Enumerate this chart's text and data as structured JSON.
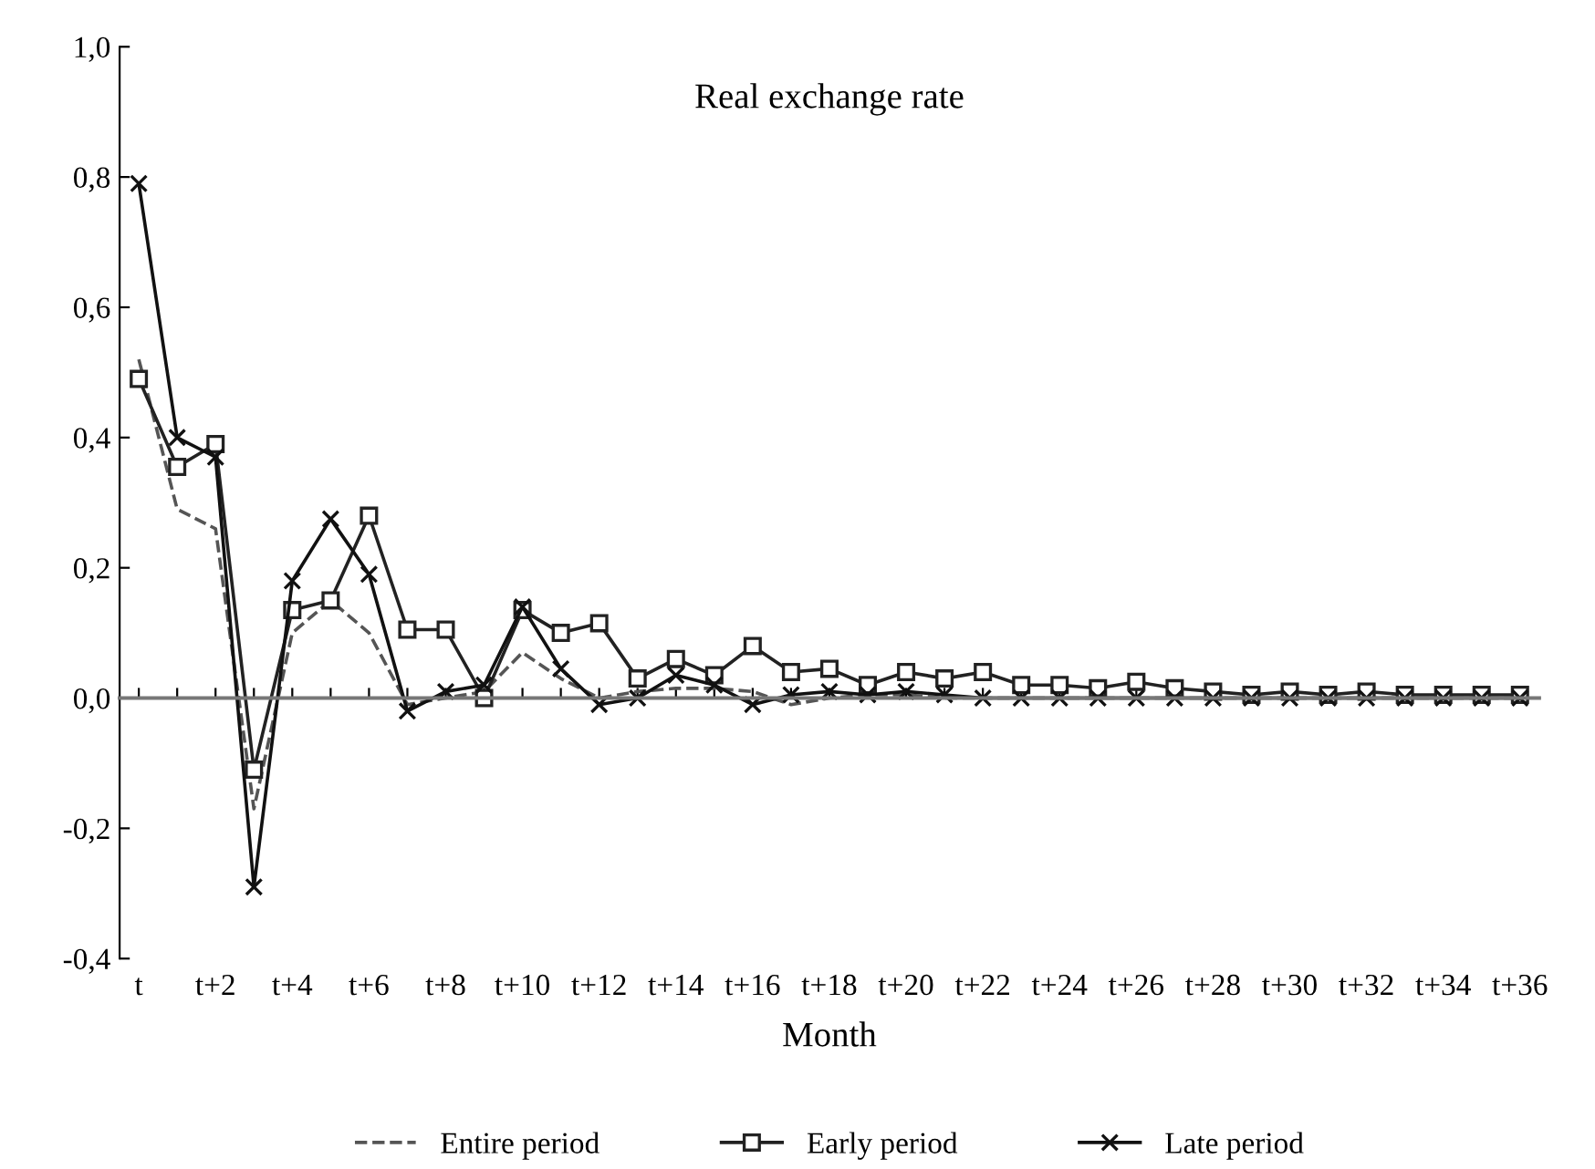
{
  "chart_data": {
    "type": "line",
    "title": "Real exchange rate",
    "xlabel": "Month",
    "categories": [
      "t",
      null,
      "t+2",
      null,
      "t+4",
      null,
      "t+6",
      null,
      "t+8",
      null,
      "t+10",
      null,
      "t+12",
      null,
      "t+14",
      null,
      "t+16",
      null,
      "t+18",
      null,
      "t+20",
      null,
      "t+22",
      null,
      "t+24",
      null,
      "t+26",
      null,
      "t+28",
      null,
      "t+30",
      null,
      "t+32",
      null,
      "t+34",
      null,
      "t+36"
    ],
    "series": [
      {
        "name": "Entire period",
        "color": "#555555",
        "marker": "none",
        "line_style": "dashed",
        "values": [
          0.52,
          0.29,
          0.26,
          -0.17,
          0.1,
          0.15,
          0.1,
          -0.01,
          0.0,
          0.01,
          0.07,
          0.03,
          0.0,
          0.01,
          0.015,
          0.015,
          0.01,
          -0.01,
          0.0,
          0.005,
          0.005,
          0.0,
          0.0,
          0.0,
          0.0,
          0.0,
          0.0,
          0.0,
          0.0,
          0.0,
          0.0,
          0.0,
          0.0,
          0.0,
          0.0,
          0.0,
          0.0
        ]
      },
      {
        "name": "Early period",
        "color": "#222222",
        "marker": "square",
        "line_style": "solid",
        "values": [
          0.49,
          0.355,
          0.39,
          -0.11,
          0.135,
          0.15,
          0.28,
          0.105,
          0.105,
          0.0,
          0.135,
          0.1,
          0.115,
          0.03,
          0.06,
          0.035,
          0.08,
          0.04,
          0.045,
          0.02,
          0.04,
          0.03,
          0.04,
          0.02,
          0.02,
          0.015,
          0.025,
          0.015,
          0.01,
          0.005,
          0.01,
          0.005,
          0.01,
          0.005,
          0.005,
          0.005,
          0.005
        ]
      },
      {
        "name": "Late period",
        "color": "#111111",
        "marker": "cross",
        "line_style": "solid",
        "values": [
          0.79,
          0.4,
          0.37,
          -0.29,
          0.18,
          0.275,
          0.19,
          -0.02,
          0.01,
          0.02,
          0.14,
          0.045,
          -0.01,
          0.0,
          0.035,
          0.02,
          -0.01,
          0.005,
          0.01,
          0.005,
          0.01,
          0.005,
          0.0,
          0.0,
          0.0,
          0.0,
          0.0,
          0.0,
          0.0,
          0.0,
          0.0,
          0.0,
          0.0,
          0.0,
          0.0,
          0.0,
          0.0
        ]
      }
    ],
    "ylim": [
      -0.4,
      1.0
    ],
    "yticks": [
      {
        "value": -0.4,
        "label": "-0,4"
      },
      {
        "value": -0.2,
        "label": "-0,2"
      },
      {
        "value": 0.0,
        "label": "0,0"
      },
      {
        "value": 0.2,
        "label": "0,2"
      },
      {
        "value": 0.4,
        "label": "0,4"
      },
      {
        "value": 0.6,
        "label": "0,6"
      },
      {
        "value": 0.8,
        "label": "0,8"
      },
      {
        "value": 1.0,
        "label": "1,0"
      }
    ],
    "legend": "bottom"
  }
}
